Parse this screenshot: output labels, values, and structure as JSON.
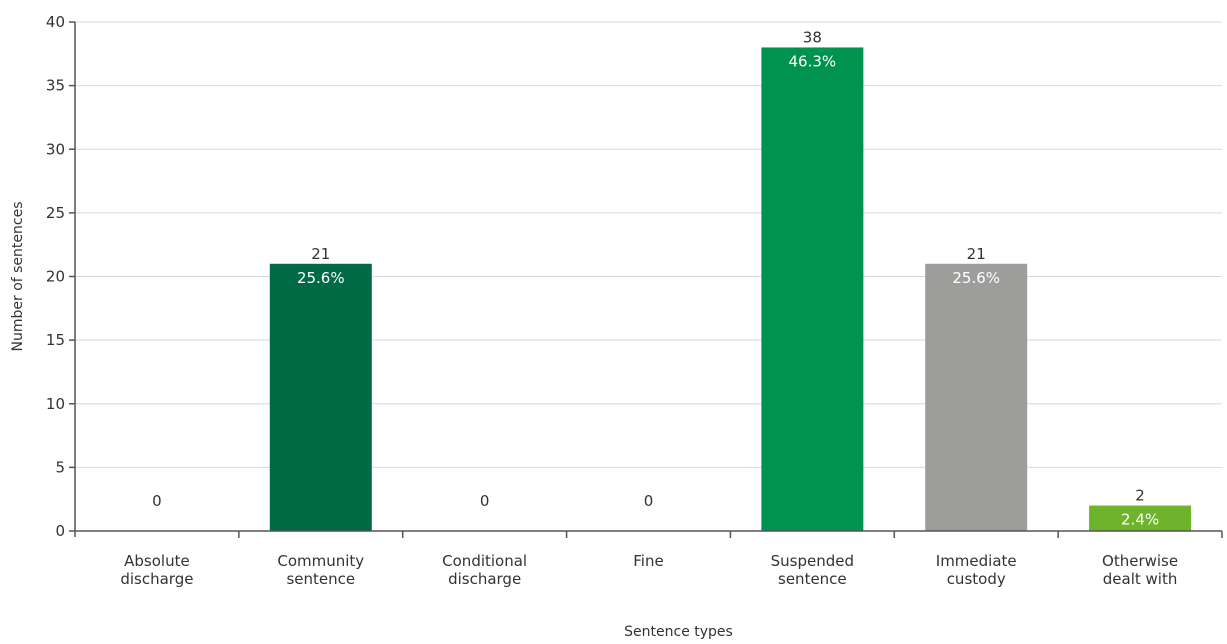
{
  "chart_data": {
    "type": "bar",
    "categories": [
      [
        "Absolute",
        "discharge"
      ],
      [
        "Community",
        "sentence"
      ],
      [
        "Conditional",
        "discharge"
      ],
      [
        "Fine"
      ],
      [
        "Suspended",
        "sentence"
      ],
      [
        "Immediate",
        "custody"
      ],
      [
        "Otherwise",
        "dealt with"
      ]
    ],
    "values": [
      0,
      21,
      0,
      0,
      38,
      21,
      2
    ],
    "value_labels": [
      "0",
      "21",
      "0",
      "0",
      "38",
      "21",
      "2"
    ],
    "percent_labels": [
      "",
      "25.6%",
      "",
      "",
      "46.3%",
      "25.6%",
      "2.4%"
    ],
    "bar_colors": [
      "#006a45",
      "#006a45",
      "#006a45",
      "#006a45",
      "#00934f",
      "#9d9d9c",
      "#6fb32d"
    ],
    "xlabel": "Sentence types",
    "ylabel": "Number of sentences",
    "ylim": [
      0,
      40
    ],
    "yticks": [
      0,
      5,
      10,
      15,
      20,
      25,
      30,
      35,
      40
    ],
    "grid": true,
    "legend": "none"
  }
}
